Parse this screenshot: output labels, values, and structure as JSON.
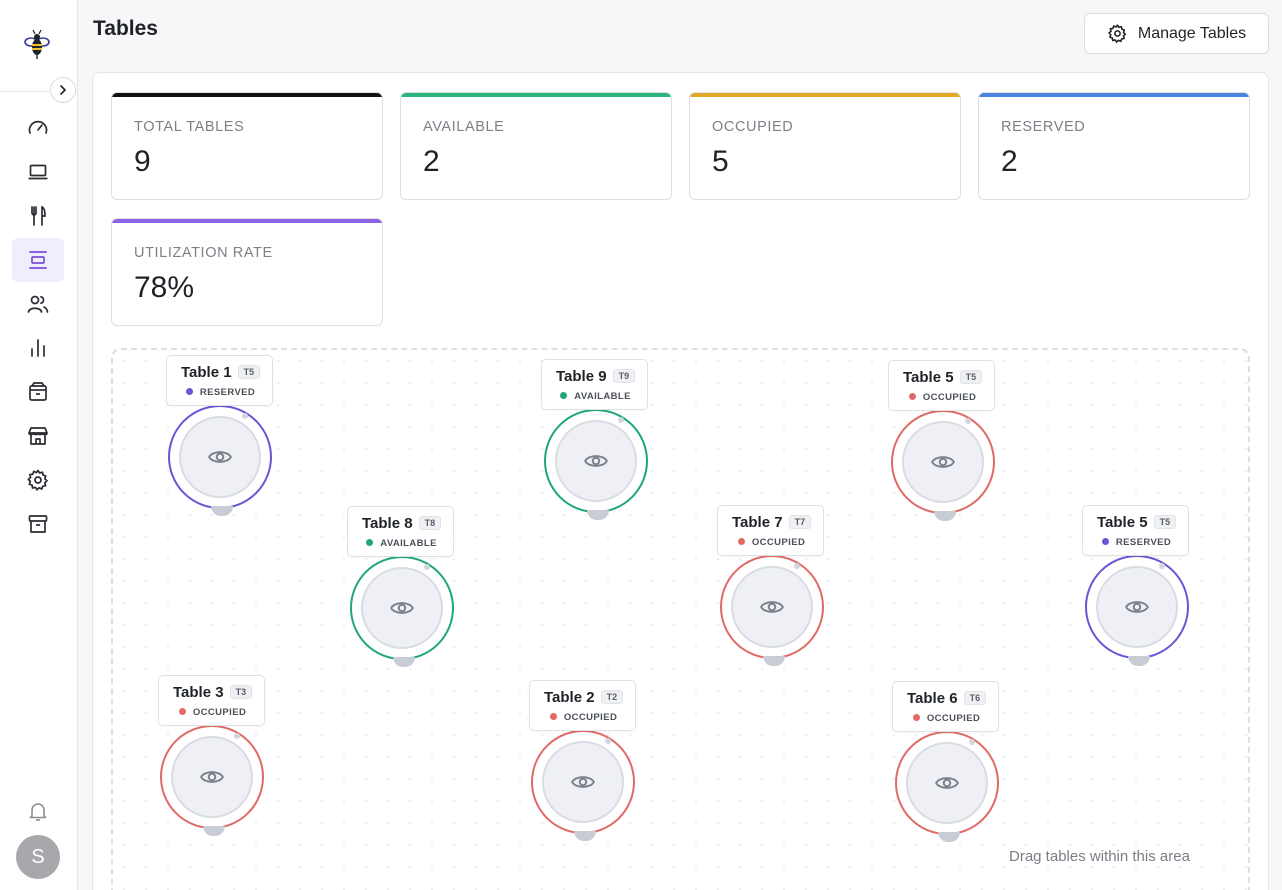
{
  "header": {
    "title": "Tables",
    "manage_label": "Manage Tables"
  },
  "sidebar": {
    "items": [
      {
        "icon": "gauge-icon"
      },
      {
        "icon": "laptop-icon"
      },
      {
        "icon": "utensils-icon"
      },
      {
        "icon": "table-icon",
        "active": true
      },
      {
        "icon": "users-icon"
      },
      {
        "icon": "bar-chart-icon"
      },
      {
        "icon": "box-icon"
      },
      {
        "icon": "store-icon"
      },
      {
        "icon": "gear-icon"
      },
      {
        "icon": "archive-icon"
      }
    ],
    "avatar_initial": "S"
  },
  "stats": [
    {
      "label": "TOTAL TABLES",
      "value": "9",
      "color": "#111111"
    },
    {
      "label": "AVAILABLE",
      "value": "2",
      "color": "#2bb57e"
    },
    {
      "label": "OCCUPIED",
      "value": "5",
      "color": "#e0a92a"
    },
    {
      "label": "RESERVED",
      "value": "2",
      "color": "#4a84e0"
    },
    {
      "label": "UTILIZATION RATE",
      "value": "78%",
      "color": "#8a63e6"
    }
  ],
  "status_colors": {
    "RESERVED": "#6657d6",
    "AVAILABLE": "#1fa67a",
    "OCCUPIED": "#e06a65"
  },
  "tables": [
    {
      "name": "Table 1",
      "code": "T5",
      "status": "RESERVED"
    },
    {
      "name": "Table 9",
      "code": "T9",
      "status": "AVAILABLE"
    },
    {
      "name": "Table 5",
      "code": "T5",
      "status": "OCCUPIED"
    },
    {
      "name": "Table 8",
      "code": "T8",
      "status": "AVAILABLE"
    },
    {
      "name": "Table 7",
      "code": "T7",
      "status": "OCCUPIED"
    },
    {
      "name": "Table 5",
      "code": "T5",
      "status": "RESERVED"
    },
    {
      "name": "Table 3",
      "code": "T3",
      "status": "OCCUPIED"
    },
    {
      "name": "Table 2",
      "code": "T2",
      "status": "OCCUPIED"
    },
    {
      "name": "Table 6",
      "code": "T6",
      "status": "OCCUPIED"
    }
  ],
  "floor": {
    "hint": "Drag tables within this area"
  }
}
